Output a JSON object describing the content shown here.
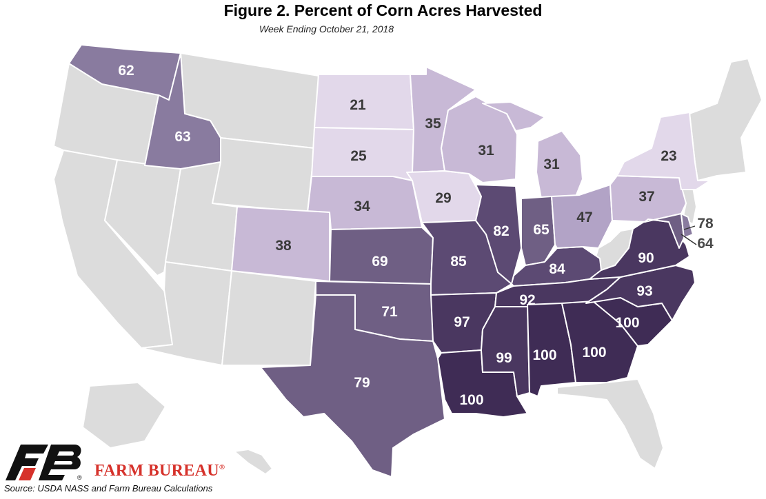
{
  "title": "Figure 2. Percent of Corn Acres Harvested",
  "subtitle": "Week Ending October 21, 2018",
  "source": "Source: USDA NASS and Farm Bureau Calculations",
  "brand": "FARM BUREAU",
  "colors": {
    "no_data": "#dcdcdc",
    "scale": [
      "#e2d8ea",
      "#c8b9d6",
      "#b2a3c6",
      "#897b9f",
      "#6f5f84",
      "#5c4a73",
      "#4a3760",
      "#3f2c55"
    ],
    "brand_red": "#d6322b"
  },
  "chart_data": {
    "type": "choropleth",
    "metric": "Percent of Corn Acres Harvested",
    "states": [
      {
        "state": "WA",
        "value": 62
      },
      {
        "state": "ID",
        "value": 63
      },
      {
        "state": "ND",
        "value": 21
      },
      {
        "state": "SD",
        "value": 25
      },
      {
        "state": "NE",
        "value": 34
      },
      {
        "state": "CO",
        "value": 38
      },
      {
        "state": "KS",
        "value": 69
      },
      {
        "state": "OK",
        "value": 71
      },
      {
        "state": "TX",
        "value": 79
      },
      {
        "state": "MN",
        "value": 35
      },
      {
        "state": "IA",
        "value": 29
      },
      {
        "state": "MO",
        "value": 85
      },
      {
        "state": "AR",
        "value": 97
      },
      {
        "state": "LA",
        "value": 100
      },
      {
        "state": "WI",
        "value": 31
      },
      {
        "state": "IL",
        "value": 82
      },
      {
        "state": "MS",
        "value": 99
      },
      {
        "state": "MI",
        "value": 31
      },
      {
        "state": "IN",
        "value": 65
      },
      {
        "state": "KY",
        "value": 84
      },
      {
        "state": "TN",
        "value": 92
      },
      {
        "state": "AL",
        "value": 100
      },
      {
        "state": "OH",
        "value": 47
      },
      {
        "state": "GA",
        "value": 100
      },
      {
        "state": "SC",
        "value": 100
      },
      {
        "state": "NC",
        "value": 93
      },
      {
        "state": "VA",
        "value": 90
      },
      {
        "state": "PA",
        "value": 37
      },
      {
        "state": "NY",
        "value": 23
      },
      {
        "state": "MD",
        "value": 78
      },
      {
        "state": "DE",
        "value": 64
      }
    ]
  }
}
